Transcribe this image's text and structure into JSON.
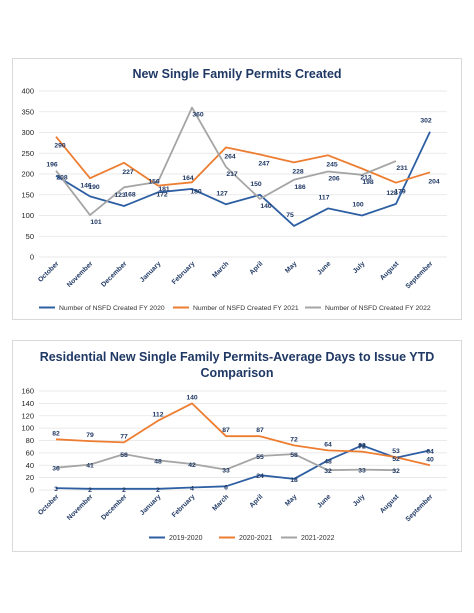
{
  "chart_data": [
    {
      "type": "line",
      "title": "New Single Family Permits Created",
      "categories": [
        "October",
        "November",
        "December",
        "January",
        "February",
        "March",
        "April",
        "May",
        "June",
        "July",
        "August",
        "September"
      ],
      "ylim": [
        0,
        400
      ],
      "yticks": [
        0,
        50,
        100,
        150,
        200,
        250,
        300,
        350,
        400
      ],
      "grid": true,
      "legend_position": "bottom",
      "series": [
        {
          "name": "Number of NSFD Created FY 2020",
          "color": "#2e5fa3",
          "values": [
            196,
            146,
            123,
            156,
            164,
            127,
            150,
            75,
            117,
            100,
            128,
            302
          ]
        },
        {
          "name": "Number of NSFD Created FY 2021",
          "color": "#ed7d31",
          "values": [
            290,
            190,
            227,
            172,
            180,
            264,
            247,
            228,
            245,
            213,
            179,
            204
          ]
        },
        {
          "name": "Number of NSFD Created  FY 2022",
          "color": "#a5a5a5",
          "values": [
            208,
            101,
            168,
            181,
            360,
            217,
            140,
            186,
            206,
            198,
            231,
            null
          ]
        }
      ]
    },
    {
      "type": "line",
      "title": "Residential New Single Family Permits-Average Days to Issue YTD Comparison",
      "categories": [
        "October",
        "November",
        "December",
        "January",
        "February",
        "March",
        "April",
        "May",
        "June",
        "July",
        "August",
        "September"
      ],
      "ylim": [
        0,
        160
      ],
      "yticks": [
        0,
        20,
        40,
        60,
        80,
        100,
        120,
        140,
        160
      ],
      "grid": true,
      "legend_position": "bottom",
      "series": [
        {
          "name": "2019-2020",
          "color": "#2e5fa3",
          "values": [
            3,
            2,
            2,
            2,
            4,
            6,
            24,
            18,
            48,
            72,
            52,
            64
          ]
        },
        {
          "name": "2020-2021",
          "color": "#ed7d31",
          "values": [
            82,
            79,
            77,
            112,
            140,
            87,
            87,
            72,
            64,
            62,
            53,
            40
          ]
        },
        {
          "name": "2021-2022",
          "color": "#a5a5a5",
          "values": [
            36,
            41,
            58,
            48,
            42,
            33,
            55,
            58,
            32,
            33,
            32,
            null
          ]
        }
      ]
    }
  ]
}
